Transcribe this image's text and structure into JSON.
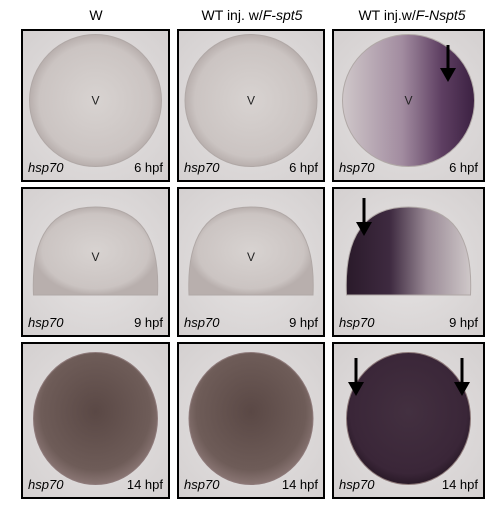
{
  "columns": [
    {
      "prefix": "W"
    },
    {
      "prefix": "WT inj. w/",
      "gene": "F-spt5"
    },
    {
      "prefix": "WT inj.w/",
      "gene": "F-Nspt5"
    }
  ],
  "rows": [
    [
      {
        "gene": "hsp70",
        "stage": "6 hpf",
        "marker": "V"
      },
      {
        "gene": "hsp70",
        "stage": "6 hpf",
        "marker": "V"
      },
      {
        "gene": "hsp70",
        "stage": "6 hpf",
        "marker": "V"
      }
    ],
    [
      {
        "gene": "hsp70",
        "stage": "9 hpf",
        "marker": "V"
      },
      {
        "gene": "hsp70",
        "stage": "9 hpf",
        "marker": "V"
      },
      {
        "gene": "hsp70",
        "stage": "9 hpf"
      }
    ],
    [
      {
        "gene": "hsp70",
        "stage": "14 hpf"
      },
      {
        "gene": "hsp70",
        "stage": "14 hpf"
      },
      {
        "gene": "hsp70",
        "stage": "14 hpf"
      }
    ]
  ]
}
